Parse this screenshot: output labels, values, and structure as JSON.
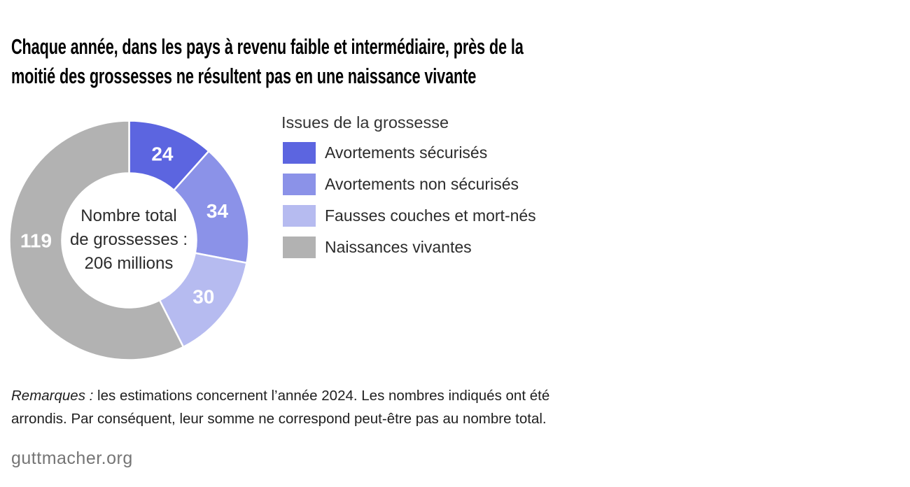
{
  "title": {
    "line1": "Chaque année, dans les pays à revenu faible et intermédiaire, près de la",
    "line2": "moitié des grossesses ne résultent pas en une naissance vivante"
  },
  "chart_data": {
    "type": "pie",
    "donut": true,
    "direction": "clockwise",
    "start_angle_deg": 0,
    "legend_title": "Issues de la grossesse",
    "legend_position": "right",
    "total_value": 207,
    "center_label": {
      "line1": "Nombre total",
      "line2": "de grossesses :",
      "line3": "206 millions"
    },
    "slices": [
      {
        "label": "Avortements sécurisés",
        "value": 24,
        "color": "#5c65e0"
      },
      {
        "label": "Avortements non sécurisés",
        "value": 34,
        "color": "#8b92e8"
      },
      {
        "label": "Fausses couches et mort-nés",
        "value": 30,
        "color": "#b6bbf0"
      },
      {
        "label": "Naissances vivantes",
        "value": 119,
        "color": "#b2b2b2",
        "label_angle_deg": 270
      }
    ],
    "value_label_color": "#ffffff",
    "separator_color": "#ffffff"
  },
  "notes": {
    "label_italic": "Remarques :",
    "line1_rest": " les estimations concernent l’année 2024. Les nombres indiqués ont été",
    "line2": "arrondis. Par conséquent, leur somme ne correspond peut-être pas au nombre total."
  },
  "footer": {
    "site": "guttmacher.org"
  }
}
